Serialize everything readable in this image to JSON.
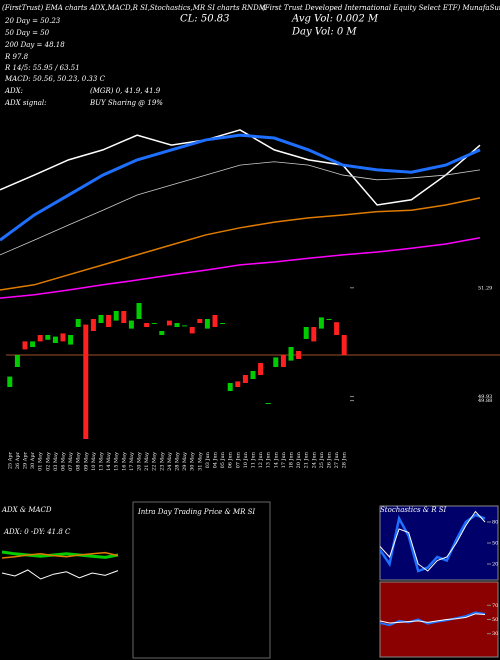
{
  "header": {
    "title_left": "(FirstTrust) EMA charts ADX,MACD,R SI,Stochastics,MR SI charts RNDM",
    "title_right": "(First Trust Developed International Equity Select ETF) MunafaSutra",
    "ema20": "20 Day = 50.23",
    "close": "CL: 50.83",
    "avg_vol": "Avg Vol: 0.002 M",
    "ema50": "50 Day = 50",
    "day_vol": "Day Vol: 0 M",
    "ema200": "200 Day = 48.18",
    "r": "R 97.8",
    "rsi": "R 14/5: 55.95 / 63.51",
    "macd": "MACD: 50.56, 50.23, 0.33 C",
    "adx_label": "ADX:",
    "adx_value": "(MGR) 0, 41.9, 41.9",
    "signal_label": "ADX signal:",
    "signal_value": "BUY Sharing @ 19%",
    "intraday_title": "Intra Day Trading Price & MR SI"
  },
  "chart_data": [
    {
      "type": "line",
      "series": [
        {
          "color": "#ffffff",
          "values": [
            50.32,
            50.63,
            50.95,
            51.16,
            51.47,
            51.26,
            51.37,
            51.58,
            51.16,
            50.95,
            50.84,
            50.0,
            50.11,
            50.63,
            51.26
          ]
        },
        {
          "color": "#1f6fff",
          "values": [
            49.26,
            49.79,
            50.21,
            50.63,
            50.95,
            51.16,
            51.37,
            51.47,
            51.41,
            51.16,
            50.84,
            50.74,
            50.69,
            50.84,
            51.16
          ]
        },
        {
          "color": "#cccccc",
          "values": [
            48.95,
            49.26,
            49.58,
            49.89,
            50.21,
            50.42,
            50.63,
            50.84,
            50.91,
            50.84,
            50.63,
            50.53,
            50.57,
            50.63,
            50.74
          ]
        },
        {
          "color": "#e07b00",
          "values": [
            48.21,
            48.32,
            48.53,
            48.74,
            48.95,
            49.16,
            49.37,
            49.52,
            49.64,
            49.73,
            49.79,
            49.86,
            49.89,
            50.0,
            50.15
          ]
        },
        {
          "color": "#ff00ff",
          "values": [
            48.04,
            48.11,
            48.21,
            48.32,
            48.42,
            48.53,
            48.63,
            48.74,
            48.8,
            48.88,
            48.95,
            49.01,
            49.09,
            49.18,
            49.31
          ]
        }
      ],
      "ylim": [
        48,
        52
      ]
    },
    {
      "type": "candlestick",
      "categories": [
        "25 Apr",
        "26 Apr",
        "29 Apr",
        "30 Apr",
        "01 May",
        "02 May",
        "03 May",
        "06 May",
        "07 May",
        "08 May",
        "09 May",
        "10 May",
        "13 May",
        "14 May",
        "15 May",
        "16 May",
        "17 May",
        "20 May",
        "21 May",
        "22 May",
        "23 May",
        "24 May",
        "28 May",
        "29 May",
        "30 May",
        "31 May",
        "03 Jun",
        "04 Jun",
        "05 Jun",
        "06 Jun",
        "07 Jun",
        "10 Jun",
        "11 Jun",
        "12 Jun",
        "13 Jun",
        "14 Jun",
        "17 Jun",
        "18 Jun",
        "20 Jun",
        "21 Jun",
        "24 Jun",
        "25 Jun",
        "26 Jun",
        "27 Jun",
        "28 Jun"
      ],
      "open": [
        50.05,
        50.3,
        50.62,
        50.55,
        50.7,
        50.64,
        50.6,
        50.72,
        50.58,
        50.8,
        50.83,
        50.9,
        50.85,
        50.95,
        50.88,
        51.0,
        50.78,
        50.9,
        50.85,
        50.85,
        50.7,
        50.88,
        50.8,
        50.82,
        50.8,
        50.9,
        50.78,
        50.95,
        50.85,
        50.0,
        50.12,
        50.2,
        50.15,
        50.35,
        49.85,
        50.3,
        50.45,
        50.38,
        50.5,
        50.65,
        50.8,
        50.78,
        50.9,
        50.86,
        50.7
      ],
      "close": [
        50.18,
        50.45,
        50.52,
        50.62,
        50.62,
        50.7,
        50.68,
        50.62,
        50.7,
        50.9,
        49.4,
        50.75,
        50.95,
        50.8,
        51.0,
        50.85,
        50.88,
        51.1,
        50.8,
        50.85,
        50.75,
        50.82,
        50.85,
        50.82,
        50.72,
        50.85,
        50.9,
        50.8,
        50.85,
        50.1,
        50.05,
        50.1,
        50.25,
        50.2,
        49.85,
        50.42,
        50.3,
        50.55,
        50.4,
        50.8,
        50.62,
        50.92,
        50.9,
        50.7,
        50.45
      ],
      "up_color": "#00cc00",
      "down_color": "#ff2020",
      "reference": 50.45,
      "ylim": [
        49.3,
        51.6
      ],
      "yticks": [
        51.29,
        49.93,
        49.88
      ]
    },
    {
      "type": "line",
      "title": "ADX & MACD",
      "subtitle": "ADX: 0 -DY: 41.8 C",
      "series": [
        {
          "color": "#00cc00",
          "values": [
            55,
            52,
            50,
            48,
            50,
            52,
            50,
            48,
            46,
            50
          ]
        },
        {
          "color": "#e07b00",
          "values": [
            45,
            47,
            50,
            52,
            49,
            47,
            50,
            52,
            54,
            49
          ]
        },
        {
          "color": "#ffffff",
          "values": [
            20,
            15,
            25,
            10,
            18,
            22,
            12,
            20,
            16,
            24
          ]
        }
      ],
      "ylim": [
        0,
        100
      ]
    },
    {
      "type": "line",
      "title": "Stochastics & R SI",
      "series": [
        {
          "color": "#1f6fff",
          "values": [
            40,
            20,
            85,
            60,
            10,
            15,
            30,
            25,
            55,
            80,
            90,
            85
          ]
        },
        {
          "color": "#ffffff",
          "values": [
            45,
            30,
            70,
            65,
            20,
            10,
            25,
            30,
            50,
            75,
            95,
            80
          ]
        }
      ],
      "ylim": [
        0,
        100
      ],
      "yticks": [
        80,
        50,
        20
      ],
      "background": "#00006a"
    },
    {
      "type": "line",
      "series": [
        {
          "color": "#1f6fff",
          "values": [
            45,
            42,
            48,
            46,
            50,
            44,
            47,
            49,
            52,
            55,
            60,
            58
          ]
        },
        {
          "color": "#ffffff",
          "values": [
            48,
            45,
            46,
            47,
            48,
            46,
            48,
            50,
            51,
            53,
            58,
            57
          ]
        }
      ],
      "ylim": [
        0,
        100
      ],
      "yticks": [
        70,
        50,
        30
      ],
      "background": "#8b0000"
    }
  ]
}
